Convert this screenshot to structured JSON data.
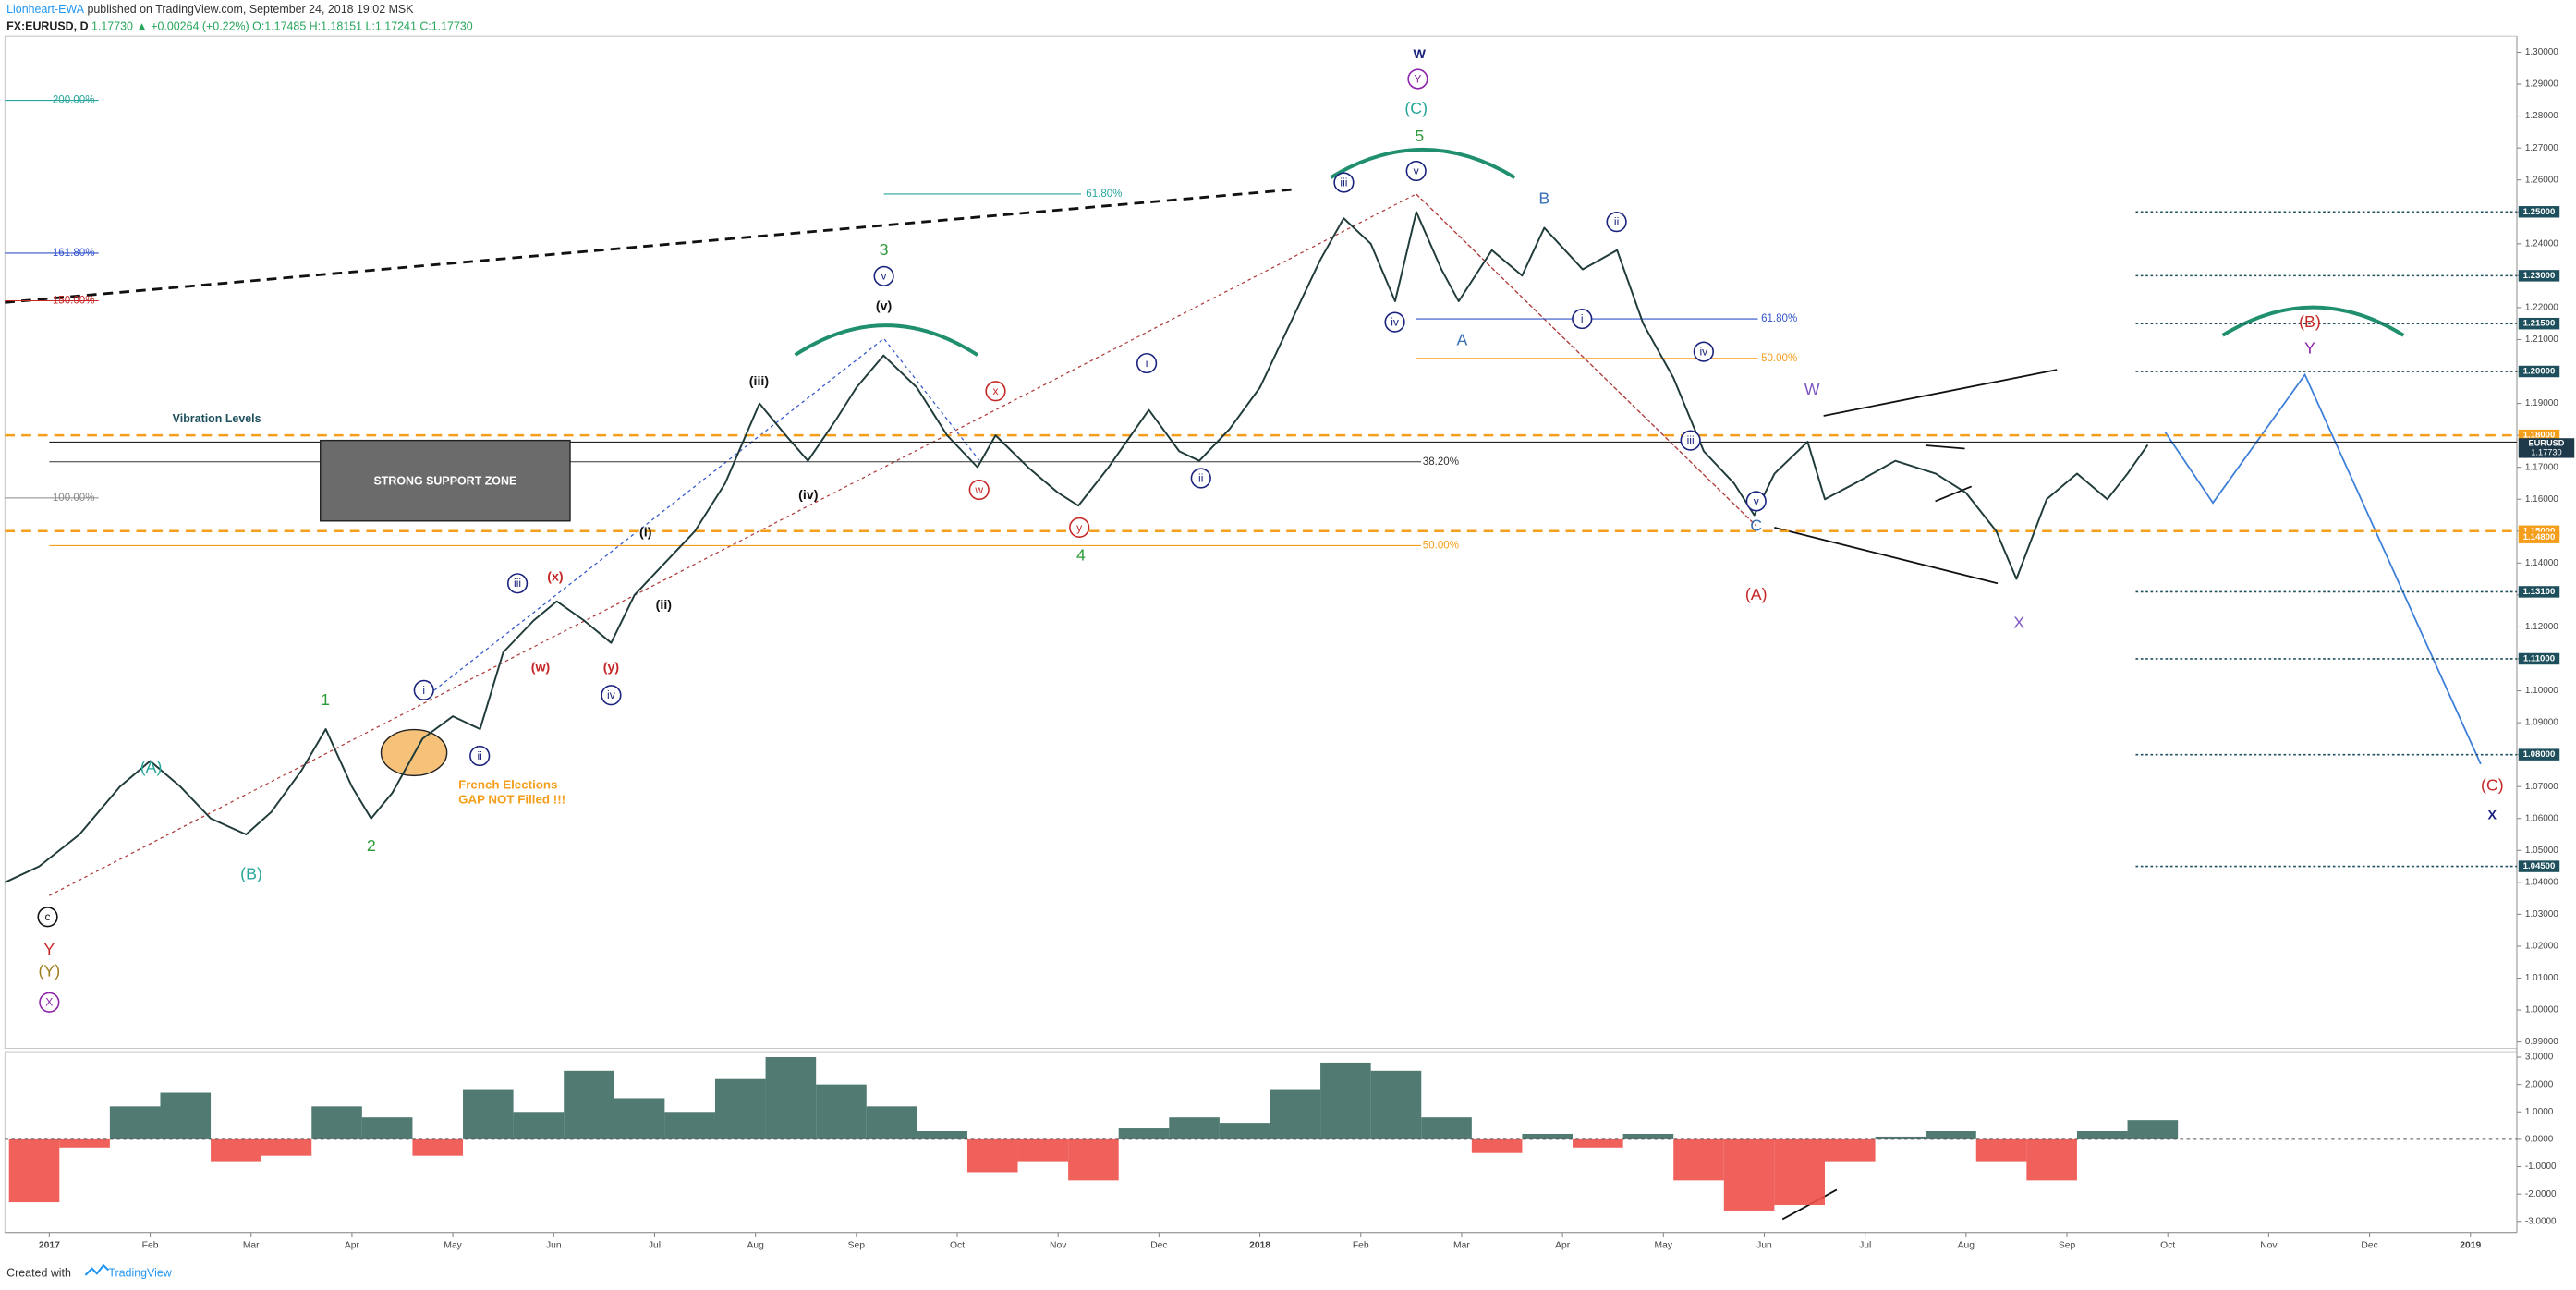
{
  "header": {
    "author": "Lionheart-EWA",
    "published": " published on TradingView.com, September 24, 2018 19:02 MSK",
    "symbol": "FX:EURUSD, D",
    "quote": "  1.17730 ▲ +0.00264 (+0.22%) O:1.17485 H:1.18151 L:1.17241 C:1.17730"
  },
  "footer": {
    "created": "Created with",
    "brand": "TradingView"
  },
  "annotations": {
    "wave_labels": [
      "W",
      "Y",
      "(C)",
      "5",
      "v",
      "iii",
      "iv",
      "A",
      "B",
      "ii",
      "i",
      "iv",
      "iii",
      "v",
      "C",
      "(A)",
      "W",
      "X",
      "(B)",
      "Y",
      "(C)",
      "X",
      "c",
      "Y",
      "(Y)",
      "X",
      "(A)",
      "(B)",
      "1",
      "2",
      "i",
      "ii",
      "iii",
      "iv",
      "(w)",
      "(x)",
      "(y)",
      "(i)",
      "(ii)",
      "(iii)",
      "(iv)",
      "(v)",
      "3",
      "v",
      "x",
      "w",
      "y",
      "4",
      "i",
      "ii"
    ],
    "notes": [
      "200.00%",
      "161.80%",
      "150.00%",
      "100.00%",
      "61.80%",
      "38.20%",
      "50.00%",
      "61.80%",
      "50.00%",
      "Vibration Levels",
      "STRONG SUPPORT ZONE",
      "French Elections",
      "GAP NOT Filled !!!"
    ]
  },
  "chart_data": [
    {
      "type": "line",
      "xlim": [
        -0.44,
        24.46
      ],
      "xticks": [
        {
          "value": 0,
          "label": "2017"
        },
        {
          "value": 1,
          "label": "Feb"
        },
        {
          "value": 2,
          "label": "Mar"
        },
        {
          "value": 3,
          "label": "Apr"
        },
        {
          "value": 4,
          "label": "May"
        },
        {
          "value": 5,
          "label": "Jun"
        },
        {
          "value": 6,
          "label": "Jul"
        },
        {
          "value": 7,
          "label": "Aug"
        },
        {
          "value": 8,
          "label": "Sep"
        },
        {
          "value": 9,
          "label": "Oct"
        },
        {
          "value": 10,
          "label": "Nov"
        },
        {
          "value": 11,
          "label": "Dec"
        },
        {
          "value": 12,
          "label": "2018"
        },
        {
          "value": 13,
          "label": "Feb"
        },
        {
          "value": 14,
          "label": "Mar"
        },
        {
          "value": 15,
          "label": "Apr"
        },
        {
          "value": 16,
          "label": "May"
        },
        {
          "value": 17,
          "label": "Jun"
        },
        {
          "value": 18,
          "label": "Jul"
        },
        {
          "value": 19,
          "label": "Aug"
        },
        {
          "value": 20,
          "label": "Sep"
        },
        {
          "value": 21,
          "label": "Oct"
        },
        {
          "value": 22,
          "label": "Nov"
        },
        {
          "value": 23,
          "label": "Dec"
        },
        {
          "value": 24,
          "label": "2019"
        }
      ],
      "ylim": [
        0.988,
        1.305
      ],
      "yticks": [
        {
          "value": 1.3,
          "label": "1.30000"
        },
        {
          "value": 1.29,
          "label": "1.29000"
        },
        {
          "value": 1.28,
          "label": "1.28000"
        },
        {
          "value": 1.27,
          "label": "1.27000"
        },
        {
          "value": 1.26,
          "label": "1.26000"
        },
        {
          "value": 1.25,
          "label": "1.25000"
        },
        {
          "value": 1.24,
          "label": "1.24000"
        },
        {
          "value": 1.23,
          "label": "1.23000"
        },
        {
          "value": 1.22,
          "label": "1.22000"
        },
        {
          "value": 1.21,
          "label": "1.21000"
        },
        {
          "value": 1.2,
          "label": "1.20000"
        },
        {
          "value": 1.19,
          "label": "1.19000"
        },
        {
          "value": 1.18,
          "label": "1.18000"
        },
        {
          "value": 1.17,
          "label": "1.17000"
        },
        {
          "value": 1.16,
          "label": "1.16000"
        },
        {
          "value": 1.15,
          "label": "1.15000"
        },
        {
          "value": 1.14,
          "label": "1.14000"
        },
        {
          "value": 1.13,
          "label": "1.13000"
        },
        {
          "value": 1.12,
          "label": "1.12000"
        },
        {
          "value": 1.11,
          "label": "1.11000"
        },
        {
          "value": 1.1,
          "label": "1.10000"
        },
        {
          "value": 1.09,
          "label": "1.09000"
        },
        {
          "value": 1.08,
          "label": "1.08000"
        },
        {
          "value": 1.07,
          "label": "1.07000"
        },
        {
          "value": 1.06,
          "label": "1.06000"
        },
        {
          "value": 1.05,
          "label": "1.05000"
        },
        {
          "value": 1.04,
          "label": "1.04000"
        },
        {
          "value": 1.03,
          "label": "1.03000"
        },
        {
          "value": 1.02,
          "label": "1.02000"
        },
        {
          "value": 1.01,
          "label": "1.01000"
        },
        {
          "value": 1.0,
          "label": "1.00000"
        },
        {
          "value": 0.99,
          "label": "0.99000"
        }
      ],
      "x": [
        -0.44,
        -0.1,
        0.3,
        0.7,
        1.0,
        1.3,
        1.6,
        1.95,
        2.2,
        2.5,
        2.74,
        3.0,
        3.19,
        3.4,
        3.7,
        4.0,
        4.27,
        4.5,
        4.8,
        5.03,
        5.3,
        5.57,
        5.8,
        6.1,
        6.4,
        6.7,
        7.04,
        7.3,
        7.52,
        7.8,
        8.0,
        8.27,
        8.6,
        8.9,
        9.2,
        9.38,
        9.7,
        10.0,
        10.2,
        10.5,
        10.9,
        11.2,
        11.4,
        11.7,
        12.0,
        12.3,
        12.6,
        12.83,
        13.1,
        13.34,
        13.55,
        13.8,
        13.97,
        14.3,
        14.6,
        14.82,
        15.2,
        15.54,
        15.8,
        16.1,
        16.4,
        16.7,
        16.9,
        17.1,
        17.43,
        17.6,
        17.9,
        18.3,
        18.7,
        19.0,
        19.3,
        19.5,
        19.8,
        20.1,
        20.4,
        20.6,
        20.8
      ],
      "series": [
        {
          "color": "#1f3b3a",
          "values": [
            1.04,
            1.045,
            1.055,
            1.07,
            1.078,
            1.07,
            1.06,
            1.055,
            1.062,
            1.075,
            1.088,
            1.07,
            1.06,
            1.068,
            1.085,
            1.092,
            1.088,
            1.112,
            1.122,
            1.128,
            1.122,
            1.115,
            1.13,
            1.14,
            1.15,
            1.165,
            1.19,
            1.18,
            1.172,
            1.185,
            1.195,
            1.205,
            1.195,
            1.18,
            1.17,
            1.18,
            1.17,
            1.162,
            1.158,
            1.17,
            1.188,
            1.175,
            1.172,
            1.182,
            1.195,
            1.215,
            1.235,
            1.248,
            1.24,
            1.222,
            1.25,
            1.232,
            1.222,
            1.238,
            1.23,
            1.245,
            1.232,
            1.238,
            1.215,
            1.198,
            1.175,
            1.165,
            1.155,
            1.168,
            1.178,
            1.16,
            1.165,
            1.172,
            1.168,
            1.162,
            1.15,
            1.135,
            1.16,
            1.168,
            1.16,
            1.168,
            1.177
          ]
        }
      ],
      "levels": [
        {
          "value": 1.25,
          "label": "1.25000",
          "color": "#1e4f5c"
        },
        {
          "value": 1.23,
          "label": "1.23000",
          "color": "#1e4f5c"
        },
        {
          "value": 1.215,
          "label": "1.21500",
          "color": "#1e4f5c"
        },
        {
          "value": 1.2,
          "label": "1.20000",
          "color": "#1e4f5c"
        },
        {
          "value": 1.18,
          "label": "1.18000",
          "color": "#f59e1b"
        },
        {
          "value": 1.15,
          "label": "1.15000",
          "color": "#f59e1b"
        },
        {
          "value": 1.148,
          "label": "1.14800",
          "color": "#f59e1b"
        },
        {
          "value": 1.131,
          "label": "1.13100",
          "color": "#1e4f5c"
        },
        {
          "value": 1.11,
          "label": "1.11000",
          "color": "#1e4f5c"
        },
        {
          "value": 1.08,
          "label": "1.08000",
          "color": "#1e4f5c"
        },
        {
          "value": 1.045,
          "label": "1.04500",
          "color": "#1e4f5c"
        }
      ],
      "last": {
        "name": "EURUSD",
        "value": 1.1773,
        "label": "1.17730"
      }
    },
    {
      "type": "bar",
      "color": "#3d6b63",
      "negative_color": "#f0504a",
      "ylim": [
        -3.4,
        3.2
      ],
      "yticks": [
        {
          "value": 3,
          "label": "3.0000"
        },
        {
          "value": 2,
          "label": "2.0000"
        },
        {
          "value": 1,
          "label": "1.0000"
        },
        {
          "value": 0,
          "label": "0.0000"
        },
        {
          "value": -1,
          "label": "-1.0000"
        },
        {
          "value": -2,
          "label": "-2.0000"
        },
        {
          "value": -3,
          "label": "-3.0000"
        }
      ],
      "x": [
        -0.4,
        0.1,
        0.6,
        1.1,
        1.6,
        2.1,
        2.6,
        3.1,
        3.6,
        4.1,
        4.6,
        5.1,
        5.6,
        6.1,
        6.6,
        7.1,
        7.6,
        8.1,
        8.6,
        9.1,
        9.6,
        10.1,
        10.6,
        11.1,
        11.6,
        12.1,
        12.6,
        13.1,
        13.6,
        14.1,
        14.6,
        15.1,
        15.6,
        16.1,
        16.6,
        17.1,
        17.6,
        18.1,
        18.6,
        19.1,
        19.6,
        20.1,
        20.6
      ],
      "values": [
        -2.3,
        -0.3,
        1.2,
        1.7,
        -0.8,
        -0.6,
        1.2,
        0.8,
        -0.6,
        1.8,
        1.0,
        2.5,
        1.5,
        1.0,
        2.2,
        3.0,
        2.0,
        1.2,
        0.3,
        -1.2,
        -0.8,
        -1.5,
        0.4,
        0.8,
        0.6,
        1.8,
        2.8,
        2.5,
        0.8,
        -0.5,
        0.2,
        -0.3,
        0.2,
        -1.5,
        -2.6,
        -2.4,
        -0.8,
        0.1,
        0.3,
        -0.8,
        -1.5,
        0.3,
        0.7
      ]
    }
  ]
}
